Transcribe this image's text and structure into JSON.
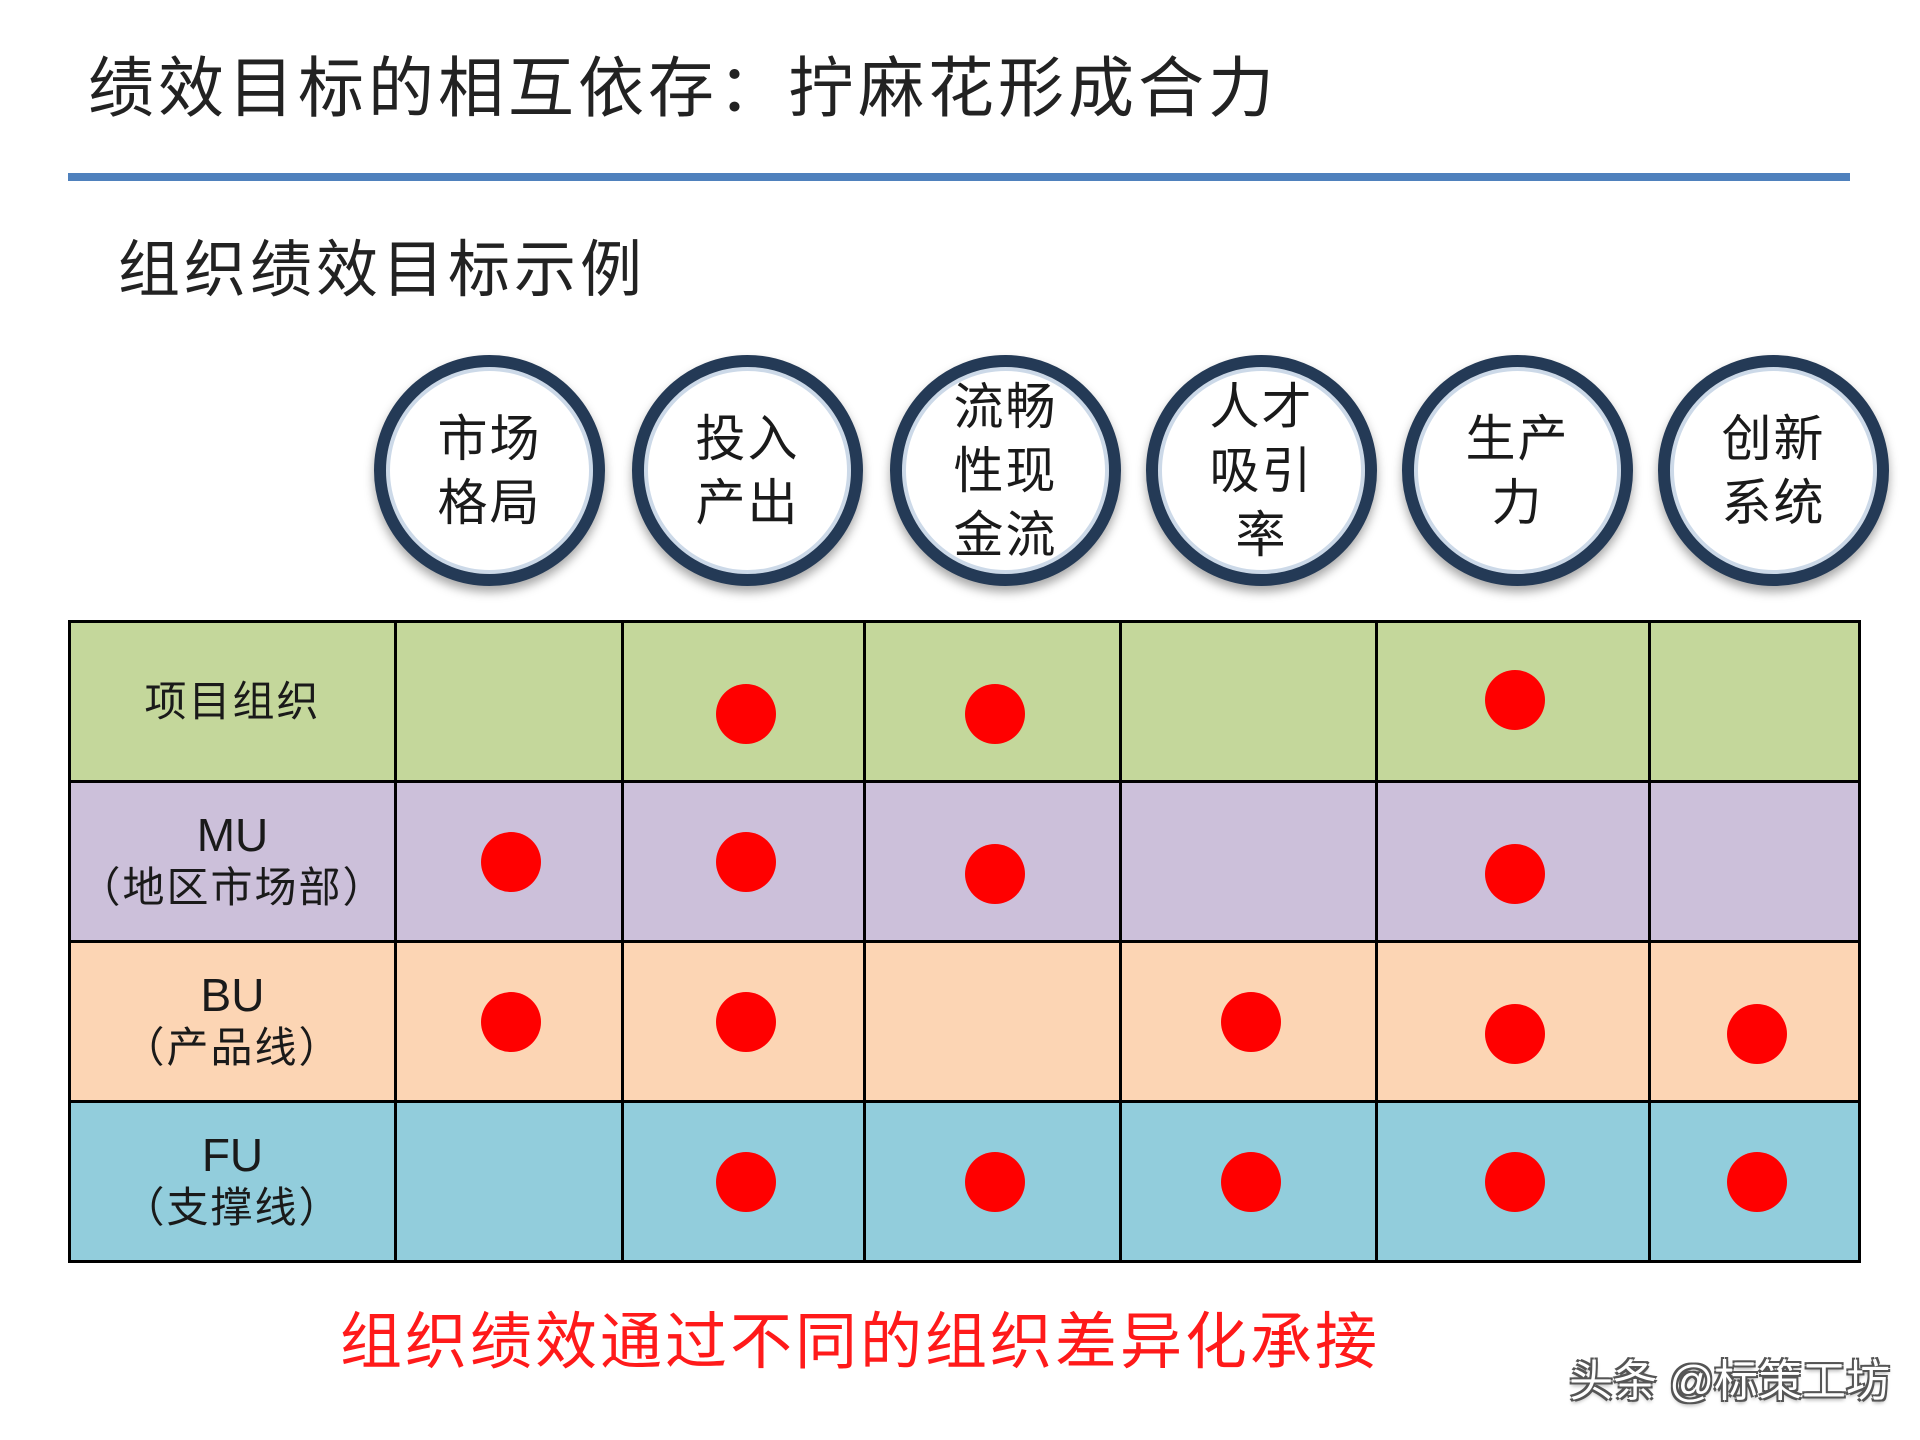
{
  "page": {
    "title": "绩效目标的相互依存：拧麻花形成合力",
    "subtitle": "组织绩效目标示例",
    "footer_note": "组织绩效通过不同的组织差异化承接",
    "watermark": "头条 @标策工坊"
  },
  "goals": [
    "市场\n格局",
    "投入\n产出",
    "流畅\n性现\n金流",
    "人才\n吸引\n率",
    "生产\n力",
    "创新\n系统"
  ],
  "rows": [
    {
      "code": "",
      "label": "项目组织",
      "color": "#c4d79b",
      "marks": [
        false,
        true,
        true,
        false,
        true,
        false
      ]
    },
    {
      "code": "MU",
      "label": "（地区市场部）",
      "color": "#ccc0da",
      "marks": [
        true,
        true,
        true,
        false,
        true,
        false
      ]
    },
    {
      "code": "BU",
      "label": "（产品线）",
      "color": "#fcd5b4",
      "marks": [
        true,
        true,
        false,
        true,
        true,
        true
      ]
    },
    {
      "code": "FU",
      "label": "（支撑线）",
      "color": "#92cddc",
      "marks": [
        false,
        true,
        true,
        true,
        true,
        true
      ]
    }
  ],
  "colors": {
    "title_rule": "#4f81bd",
    "circle_ring": "#243a56",
    "dot": "#ff0000",
    "footer_note": "#ff1a1a"
  }
}
